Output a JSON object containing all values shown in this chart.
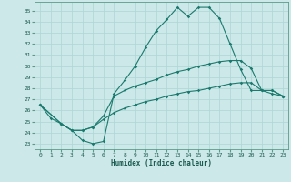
{
  "xlabel": "Humidex (Indice chaleur)",
  "bg_color": "#cde8e8",
  "grid_color": "#b0d8d8",
  "line_color": "#1a7a6e",
  "xlim": [
    -0.5,
    23.5
  ],
  "ylim": [
    22.5,
    35.8
  ],
  "xticks": [
    0,
    1,
    2,
    3,
    4,
    5,
    6,
    7,
    8,
    9,
    10,
    11,
    12,
    13,
    14,
    15,
    16,
    17,
    18,
    19,
    20,
    21,
    22,
    23
  ],
  "yticks": [
    23,
    24,
    25,
    26,
    27,
    28,
    29,
    30,
    31,
    32,
    33,
    34,
    35
  ],
  "line1_x": [
    0,
    1,
    2,
    3,
    4,
    5,
    6,
    7,
    8,
    9,
    10,
    11,
    12,
    13,
    14,
    15,
    16,
    17,
    18,
    19,
    20,
    21,
    22,
    23
  ],
  "line1_y": [
    26.5,
    25.3,
    24.8,
    24.2,
    23.3,
    23.0,
    23.2,
    27.5,
    28.7,
    30.0,
    31.7,
    33.2,
    34.2,
    35.3,
    34.5,
    35.3,
    35.3,
    34.3,
    32.0,
    29.7,
    27.8,
    27.8,
    27.5,
    27.3
  ],
  "line2_x": [
    0,
    2,
    3,
    4,
    5,
    6,
    7,
    8,
    9,
    10,
    11,
    12,
    13,
    14,
    15,
    16,
    17,
    18,
    19,
    20,
    21,
    22,
    23
  ],
  "line2_y": [
    26.5,
    24.8,
    24.2,
    24.2,
    24.5,
    25.5,
    27.3,
    27.8,
    28.2,
    28.5,
    28.8,
    29.2,
    29.5,
    29.7,
    30.0,
    30.2,
    30.4,
    30.5,
    30.5,
    29.8,
    27.8,
    27.8,
    27.3
  ],
  "line3_x": [
    0,
    2,
    3,
    4,
    5,
    6,
    7,
    8,
    9,
    10,
    11,
    12,
    13,
    14,
    15,
    16,
    17,
    18,
    19,
    20,
    21,
    22,
    23
  ],
  "line3_y": [
    26.5,
    24.8,
    24.2,
    24.2,
    24.5,
    25.2,
    25.8,
    26.2,
    26.5,
    26.8,
    27.0,
    27.3,
    27.5,
    27.7,
    27.8,
    28.0,
    28.2,
    28.4,
    28.5,
    28.5,
    27.8,
    27.8,
    27.3
  ]
}
